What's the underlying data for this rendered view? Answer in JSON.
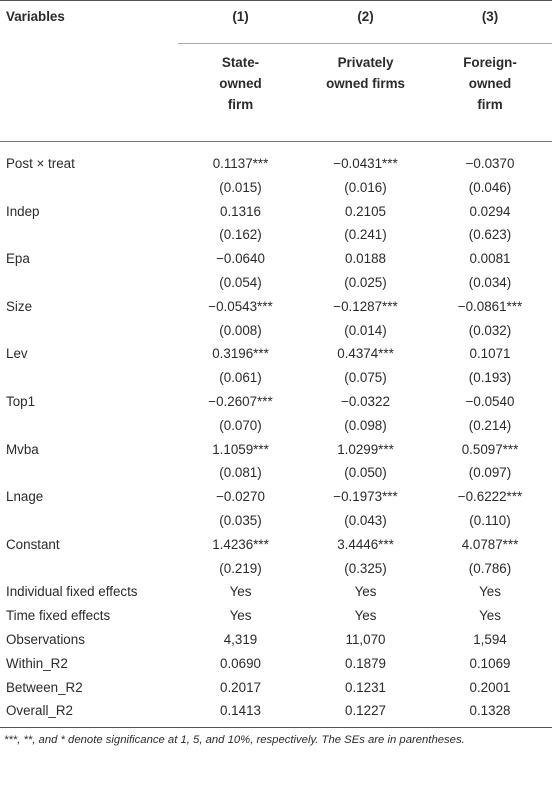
{
  "header": {
    "variables_label": "Variables",
    "columns": [
      {
        "num": "(1)",
        "lines": [
          "State-",
          "owned",
          "firm"
        ]
      },
      {
        "num": "(2)",
        "lines": [
          "Privately",
          "owned firms"
        ]
      },
      {
        "num": "(3)",
        "lines": [
          "Foreign-",
          "owned",
          "firm"
        ]
      }
    ]
  },
  "rows": [
    {
      "label": "Post × treat",
      "values": [
        "0.1137***",
        "−0.0431***",
        "−0.0370"
      ]
    },
    {
      "label": "",
      "values": [
        "(0.015)",
        "(0.016)",
        "(0.046)"
      ]
    },
    {
      "label": "Indep",
      "values": [
        "0.1316",
        "0.2105",
        "0.0294"
      ]
    },
    {
      "label": "",
      "values": [
        "(0.162)",
        "(0.241)",
        "(0.623)"
      ]
    },
    {
      "label": "Epa",
      "values": [
        "−0.0640",
        "0.0188",
        "0.0081"
      ]
    },
    {
      "label": "",
      "values": [
        "(0.054)",
        "(0.025)",
        "(0.034)"
      ]
    },
    {
      "label": "Size",
      "values": [
        "−0.0543***",
        "−0.1287***",
        "−0.0861***"
      ]
    },
    {
      "label": "",
      "values": [
        "(0.008)",
        "(0.014)",
        "(0.032)"
      ]
    },
    {
      "label": "Lev",
      "values": [
        "0.3196***",
        "0.4374***",
        "0.1071"
      ]
    },
    {
      "label": "",
      "values": [
        "(0.061)",
        "(0.075)",
        "(0.193)"
      ]
    },
    {
      "label": "Top1",
      "values": [
        "−0.2607***",
        "−0.0322",
        "−0.0540"
      ]
    },
    {
      "label": "",
      "values": [
        "(0.070)",
        "(0.098)",
        "(0.214)"
      ]
    },
    {
      "label": "Mvba",
      "values": [
        "1.1059***",
        "1.0299***",
        "0.5097***"
      ]
    },
    {
      "label": "",
      "values": [
        "(0.081)",
        "(0.050)",
        "(0.097)"
      ]
    },
    {
      "label": "Lnage",
      "values": [
        "−0.0270",
        "−0.1973***",
        "−0.6222***"
      ]
    },
    {
      "label": "",
      "values": [
        "(0.035)",
        "(0.043)",
        "(0.110)"
      ]
    },
    {
      "label": "Constant",
      "values": [
        "1.4236***",
        "3.4446***",
        "4.0787***"
      ]
    },
    {
      "label": "",
      "values": [
        "(0.219)",
        "(0.325)",
        "(0.786)"
      ]
    },
    {
      "label": "Individual fixed effects",
      "values": [
        "Yes",
        "Yes",
        "Yes"
      ]
    },
    {
      "label": "Time fixed effects",
      "values": [
        "Yes",
        "Yes",
        "Yes"
      ]
    },
    {
      "label": "Observations",
      "values": [
        "4,319",
        "11,070",
        "1,594"
      ]
    },
    {
      "label": "Within_R2",
      "values": [
        "0.0690",
        "0.1879",
        "0.1069"
      ]
    },
    {
      "label": "Between_R2",
      "values": [
        "0.2017",
        "0.1231",
        "0.2001"
      ]
    },
    {
      "label": "Overall_R2",
      "values": [
        "0.1413",
        "0.1227",
        "0.1328"
      ]
    }
  ],
  "footnote": "***, **, and * denote significance at 1, 5, and 10%, respectively. The SEs are in parentheses."
}
